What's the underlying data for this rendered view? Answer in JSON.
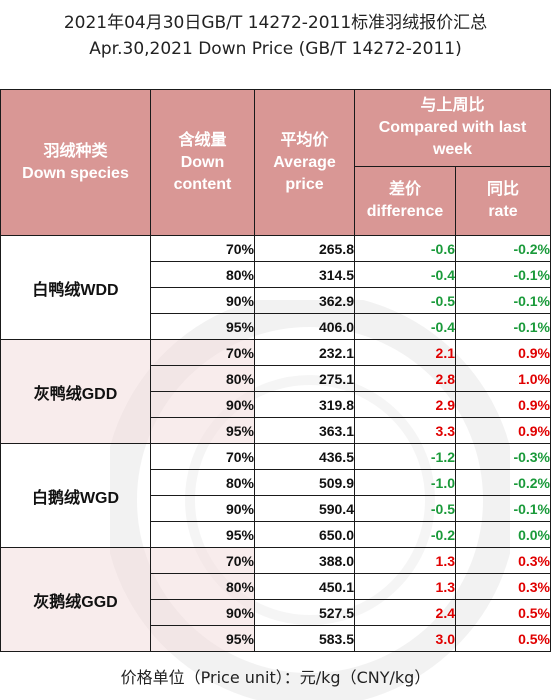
{
  "title_zh": "2021年04月30日GB/T 14272-2011标准羽绒报价汇总",
  "title_en": "Apr.30,2021 Down Price (GB/T 14272-2011)",
  "headers": {
    "species_zh": "羽绒种类",
    "species_en": "Down species",
    "content_zh": "含绒量",
    "content_en_1": "Down",
    "content_en_2": "content",
    "avg_zh": "平均价",
    "avg_en_1": "Average",
    "avg_en_2": "price",
    "compare_zh": "与上周比",
    "compare_en_1": "Compared with last",
    "compare_en_2": "week",
    "diff_zh": "差价",
    "diff_en": "difference",
    "rate_zh": "同比",
    "rate_en": "rate"
  },
  "groups": [
    {
      "species": "白鸭绒WDD",
      "rows": [
        {
          "content": "70%",
          "avg": "265.8",
          "diff": "-0.6",
          "rate": "-0.2%"
        },
        {
          "content": "80%",
          "avg": "314.5",
          "diff": "-0.4",
          "rate": "-0.1%"
        },
        {
          "content": "90%",
          "avg": "362.9",
          "diff": "-0.5",
          "rate": "-0.1%"
        },
        {
          "content": "95%",
          "avg": "406.0",
          "diff": "-0.4",
          "rate": "-0.1%"
        }
      ]
    },
    {
      "species": "灰鸭绒GDD",
      "rows": [
        {
          "content": "70%",
          "avg": "232.1",
          "diff": "2.1",
          "rate": "0.9%"
        },
        {
          "content": "80%",
          "avg": "275.1",
          "diff": "2.8",
          "rate": "1.0%"
        },
        {
          "content": "90%",
          "avg": "319.8",
          "diff": "2.9",
          "rate": "0.9%"
        },
        {
          "content": "95%",
          "avg": "363.1",
          "diff": "3.3",
          "rate": "0.9%"
        }
      ]
    },
    {
      "species": "白鹅绒WGD",
      "rows": [
        {
          "content": "70%",
          "avg": "436.5",
          "diff": "-1.2",
          "rate": "-0.3%"
        },
        {
          "content": "80%",
          "avg": "509.9",
          "diff": "-1.0",
          "rate": "-0.2%"
        },
        {
          "content": "90%",
          "avg": "590.4",
          "diff": "-0.5",
          "rate": "-0.1%"
        },
        {
          "content": "95%",
          "avg": "650.0",
          "diff": "-0.2",
          "rate": "0.0%"
        }
      ]
    },
    {
      "species": "灰鹅绒GGD",
      "rows": [
        {
          "content": "70%",
          "avg": "388.0",
          "diff": "1.3",
          "rate": "0.3%"
        },
        {
          "content": "80%",
          "avg": "450.1",
          "diff": "1.3",
          "rate": "0.3%"
        },
        {
          "content": "90%",
          "avg": "527.5",
          "diff": "2.4",
          "rate": "0.5%"
        },
        {
          "content": "95%",
          "avg": "583.5",
          "diff": "3.0",
          "rate": "0.5%"
        }
      ]
    }
  ],
  "unit_note": "价格单位（Price unit）：元/kg（CNY/kg）",
  "colors": {
    "header_bg": "#d99795",
    "header_text": "#ffffff",
    "group_tint": "#f3dddc",
    "increase": "#e00000",
    "decrease": "#1a9a3a"
  }
}
